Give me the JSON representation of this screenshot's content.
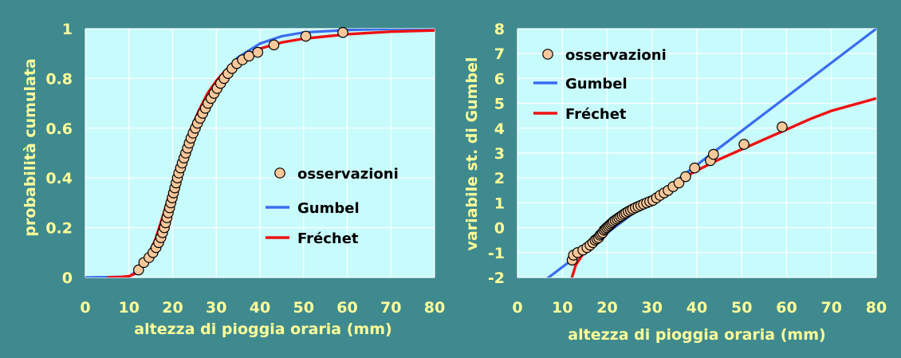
{
  "colors": {
    "background": "#3f8a8f",
    "plot_area": "#c8fbfb",
    "text": "#ffff99",
    "gumbel": "#3a6cf0",
    "frechet": "#ee1111",
    "observations": "#f9c89a",
    "marker_edge": "#000000"
  },
  "chart_data": [
    {
      "type": "line",
      "xlabel": "altezza di pioggia oraria (mm)",
      "ylabel": "probabilità cumulata",
      "xlim": [
        0,
        80
      ],
      "ylim": [
        0,
        1
      ],
      "xticks": [
        "0",
        "10",
        "20",
        "30",
        "40",
        "50",
        "60",
        "70",
        "80"
      ],
      "yticks": [
        "0",
        "0.2",
        "0.4",
        "0.6",
        "0.8",
        "1"
      ],
      "grid": true,
      "legend_position": "bottom-right",
      "series": [
        {
          "name": "osservazioni",
          "kind": "scatter",
          "x": [
            12.2,
            13.4,
            14.6,
            15.5,
            16.2,
            16.8,
            17.3,
            17.7,
            18.1,
            18.4,
            18.7,
            19.0,
            19.3,
            19.6,
            19.9,
            20.2,
            20.5,
            20.8,
            21.1,
            21.4,
            21.8,
            22.2,
            22.6,
            23.0,
            23.4,
            23.8,
            24.2,
            24.7,
            25.2,
            25.7,
            26.3,
            26.9,
            27.5,
            28.1,
            28.8,
            29.5,
            30.2,
            31.0,
            31.8,
            32.7,
            33.6,
            34.7,
            36.0,
            37.5,
            39.5,
            43.2,
            50.5,
            59.0
          ],
          "y": [
            0.03,
            0.06,
            0.08,
            0.1,
            0.12,
            0.14,
            0.16,
            0.18,
            0.2,
            0.22,
            0.24,
            0.26,
            0.28,
            0.3,
            0.32,
            0.34,
            0.36,
            0.38,
            0.4,
            0.42,
            0.44,
            0.46,
            0.48,
            0.5,
            0.52,
            0.54,
            0.56,
            0.58,
            0.6,
            0.62,
            0.64,
            0.66,
            0.68,
            0.7,
            0.72,
            0.74,
            0.76,
            0.78,
            0.8,
            0.82,
            0.84,
            0.86,
            0.875,
            0.89,
            0.905,
            0.935,
            0.97,
            0.985
          ]
        },
        {
          "name": "Gumbel",
          "kind": "line",
          "x": [
            0,
            10,
            12,
            14,
            16,
            18,
            20,
            22,
            24,
            26,
            28,
            30,
            32,
            35,
            40,
            45,
            50,
            60,
            70,
            80
          ],
          "y": [
            0,
            0.003,
            0.03,
            0.08,
            0.15,
            0.25,
            0.36,
            0.47,
            0.57,
            0.65,
            0.72,
            0.78,
            0.83,
            0.885,
            0.94,
            0.97,
            0.985,
            0.995,
            0.999,
            1.0
          ]
        },
        {
          "name": "Fréchet",
          "kind": "line",
          "x": [
            5,
            8,
            10,
            12,
            14,
            16,
            18,
            20,
            22,
            24,
            26,
            28,
            30,
            32,
            35,
            40,
            45,
            50,
            60,
            70,
            80
          ],
          "y": [
            0,
            0.002,
            0.005,
            0.02,
            0.07,
            0.15,
            0.26,
            0.38,
            0.49,
            0.59,
            0.67,
            0.74,
            0.79,
            0.83,
            0.875,
            0.92,
            0.945,
            0.96,
            0.978,
            0.988,
            0.993
          ]
        }
      ]
    },
    {
      "type": "line",
      "xlabel": "altezza di pioggia oraria (mm)",
      "ylabel": "variabile st. di Gumbel",
      "xlim": [
        0,
        80
      ],
      "ylim": [
        -2,
        8
      ],
      "xticks": [
        "0",
        "10",
        "20",
        "30",
        "40",
        "50",
        "60",
        "70",
        "80"
      ],
      "yticks": [
        "-2",
        "-1",
        "0",
        "1",
        "2",
        "3",
        "4",
        "5",
        "6",
        "7",
        "8"
      ],
      "grid": true,
      "legend_position": "top-left",
      "series": [
        {
          "name": "osservazioni",
          "kind": "scatter",
          "x": [
            12.2,
            12.5,
            13.4,
            14.6,
            15.5,
            16.2,
            16.8,
            17.3,
            17.7,
            18.1,
            18.4,
            18.7,
            19.0,
            19.3,
            19.6,
            19.9,
            20.2,
            20.5,
            20.8,
            21.1,
            21.4,
            21.8,
            22.2,
            22.6,
            23.0,
            23.4,
            23.8,
            24.2,
            24.7,
            25.2,
            25.7,
            26.3,
            26.9,
            27.5,
            28.1,
            28.8,
            29.5,
            30.2,
            31.0,
            31.8,
            32.7,
            33.6,
            34.7,
            36.0,
            37.5,
            39.5,
            43.0,
            43.7,
            50.5,
            59.0
          ],
          "y": [
            -1.3,
            -1.1,
            -1.0,
            -0.9,
            -0.8,
            -0.7,
            -0.6,
            -0.5,
            -0.45,
            -0.4,
            -0.3,
            -0.25,
            -0.2,
            -0.1,
            -0.05,
            0.0,
            0.05,
            0.1,
            0.15,
            0.2,
            0.25,
            0.3,
            0.35,
            0.4,
            0.45,
            0.5,
            0.55,
            0.6,
            0.65,
            0.7,
            0.75,
            0.8,
            0.85,
            0.9,
            0.95,
            1.0,
            1.05,
            1.1,
            1.2,
            1.3,
            1.4,
            1.5,
            1.65,
            1.8,
            2.05,
            2.4,
            2.7,
            2.95,
            3.35,
            4.05
          ]
        },
        {
          "name": "Gumbel",
          "kind": "line",
          "x": [
            5.5,
            80
          ],
          "y": [
            -2.2,
            8.0
          ]
        },
        {
          "name": "Fréchet",
          "kind": "line",
          "x": [
            11.8,
            13,
            15,
            17,
            20,
            25,
            30,
            35,
            40,
            45,
            50,
            55,
            60,
            65,
            70,
            75,
            80
          ],
          "y": [
            -2.2,
            -1.5,
            -0.95,
            -0.55,
            -0.05,
            0.65,
            1.25,
            1.8,
            2.3,
            2.75,
            3.15,
            3.55,
            3.95,
            4.35,
            4.7,
            4.95,
            5.2
          ]
        }
      ]
    }
  ]
}
